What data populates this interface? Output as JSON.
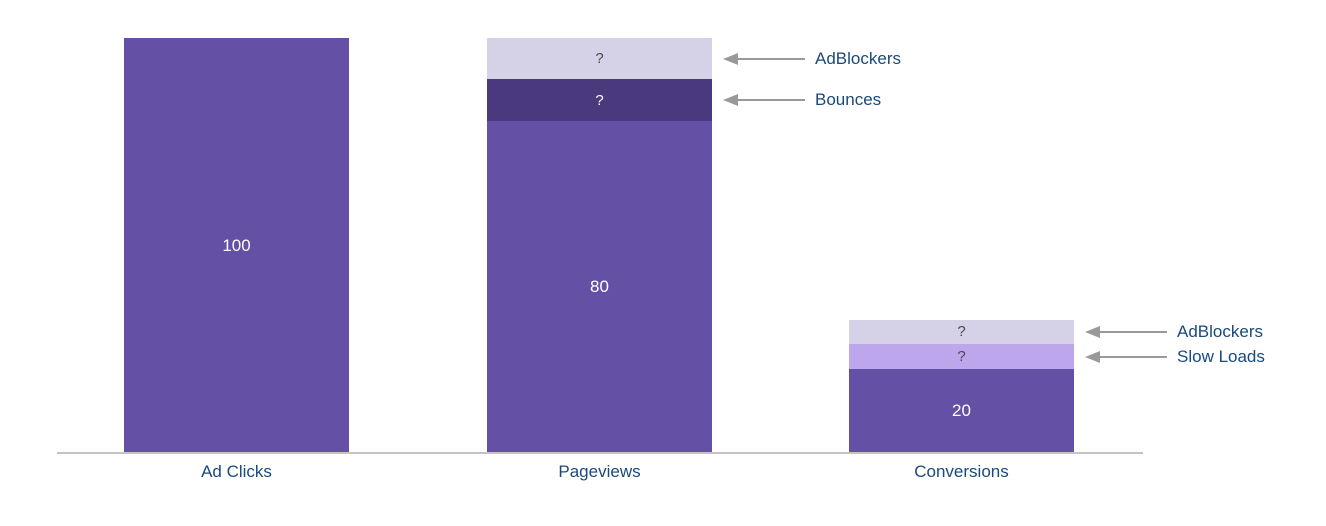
{
  "colors": {
    "primary_purple": "#6451a5",
    "dark_purple": "#4a3a7d",
    "lavender": "#d5d1e7",
    "light_purple": "#bda6ec",
    "value_text_white": "#ffffff",
    "question_text_dark": "#4a4a4a",
    "label_navy": "#19497d",
    "arrow_gray": "#999999",
    "axis_gray": "#c4c4c4"
  },
  "chart_data": {
    "type": "bar",
    "subtype": "stacked-funnel",
    "title": "",
    "xlabel": "",
    "ylabel": "",
    "ylim": [
      0,
      100
    ],
    "grid": false,
    "legend": "none",
    "categories": [
      "Ad Clicks",
      "Pageviews",
      "Conversions"
    ],
    "bars": [
      {
        "category": "Ad Clicks",
        "segments": [
          {
            "name": "measured",
            "label": "100",
            "value": 100,
            "color_key": "primary_purple",
            "label_color_key": "value_text_white",
            "label_size": 17
          }
        ]
      },
      {
        "category": "Pageviews",
        "segments": [
          {
            "name": "measured",
            "label": "80",
            "value": 80,
            "color_key": "primary_purple",
            "label_color_key": "value_text_white",
            "label_size": 17
          },
          {
            "name": "Bounces",
            "label": "?",
            "value": 10,
            "color_key": "dark_purple",
            "label_color_key": "value_text_white",
            "label_size": 15
          },
          {
            "name": "AdBlockers",
            "label": "?",
            "value": 10,
            "color_key": "lavender",
            "label_color_key": "question_text_dark",
            "label_size": 15
          }
        ]
      },
      {
        "category": "Conversions",
        "segments": [
          {
            "name": "measured",
            "label": "20",
            "value": 20,
            "color_key": "primary_purple",
            "label_color_key": "value_text_white",
            "label_size": 17
          },
          {
            "name": "Slow Loads",
            "label": "?",
            "value": 6,
            "color_key": "light_purple",
            "label_color_key": "question_text_dark",
            "label_size": 15
          },
          {
            "name": "AdBlockers",
            "label": "?",
            "value": 6,
            "color_key": "lavender",
            "label_color_key": "question_text_dark",
            "label_size": 15
          }
        ]
      }
    ],
    "callouts": [
      {
        "bar_index": 1,
        "segment_index": 2,
        "label": "AdBlockers"
      },
      {
        "bar_index": 1,
        "segment_index": 1,
        "label": "Bounces"
      },
      {
        "bar_index": 2,
        "segment_index": 2,
        "label": "AdBlockers"
      },
      {
        "bar_index": 2,
        "segment_index": 1,
        "label": "Slow Loads"
      }
    ]
  }
}
